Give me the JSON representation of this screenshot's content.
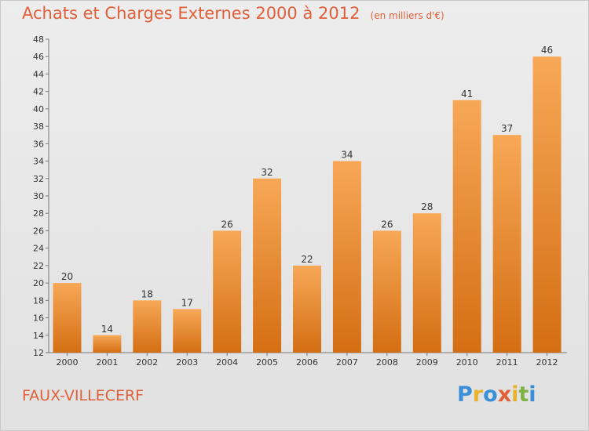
{
  "title": "Achats et Charges Externes 2000 à 2012",
  "unit": "(en milliers d'€)",
  "location": "FAUX-VILLECERF",
  "logo": {
    "text": "Proxiti",
    "letters": [
      "P",
      "r",
      "o",
      "x",
      "i",
      "t",
      "i"
    ],
    "colors": [
      "#3b8fd8",
      "#e8b22a",
      "#3b8fd8",
      "#e0603a",
      "#e8b22a",
      "#7cb342",
      "#3b8fd8"
    ]
  },
  "colors": {
    "bar_top": "#f7a857",
    "bar_bottom": "#d46e13",
    "title": "#e0603a"
  },
  "chart_data": {
    "type": "bar",
    "categories": [
      "2000",
      "2001",
      "2002",
      "2003",
      "2004",
      "2005",
      "2006",
      "2007",
      "2008",
      "2009",
      "2010",
      "2011",
      "2012"
    ],
    "values": [
      20,
      14,
      18,
      17,
      26,
      32,
      22,
      34,
      26,
      28,
      41,
      37,
      46
    ],
    "ylim": [
      12,
      48
    ],
    "yticks": [
      12,
      14,
      16,
      18,
      20,
      22,
      24,
      26,
      28,
      30,
      32,
      34,
      36,
      38,
      40,
      42,
      44,
      46,
      48
    ],
    "grid": false,
    "data_labels": true
  }
}
